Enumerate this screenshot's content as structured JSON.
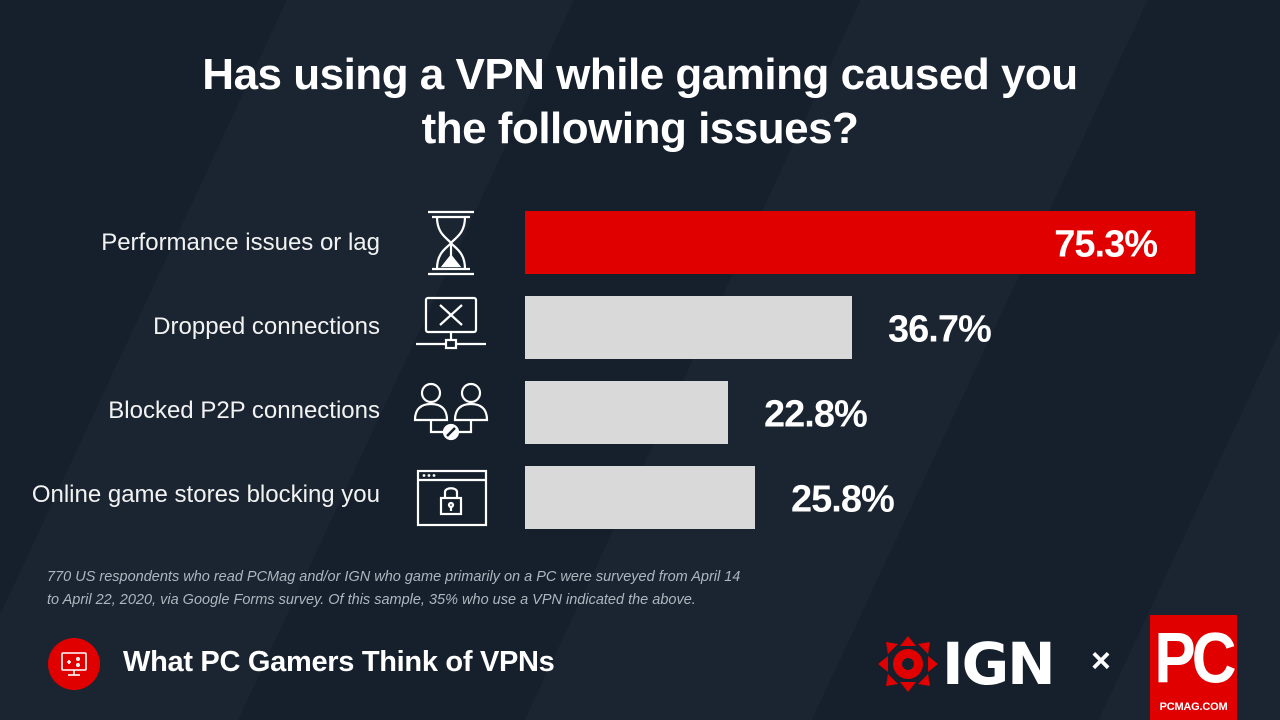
{
  "title": {
    "line1": "Has using a VPN while gaming caused you",
    "line2": "the following issues?"
  },
  "chart_data": {
    "type": "bar",
    "orientation": "horizontal",
    "categories": [
      "Performance issues or lag",
      "Dropped connections",
      "Blocked P2P connections",
      "Online game stores blocking you"
    ],
    "values": [
      75.3,
      36.7,
      22.8,
      25.8
    ],
    "value_labels": [
      "75.3%",
      "36.7%",
      "22.8%",
      "25.8%"
    ],
    "xlim": [
      0,
      75.3
    ],
    "grid": false,
    "legend": "none",
    "bar_colors": [
      "#e00000",
      "#d9d9d9",
      "#d9d9d9",
      "#d9d9d9"
    ],
    "icons": [
      "hourglass-icon",
      "network-error-icon",
      "blocked-users-icon",
      "locked-browser-icon"
    ]
  },
  "note": {
    "line1": "770 US respondents who read PCMag and/or IGN who game primarily on a PC were surveyed from April 14",
    "line2": "to April 22, 2020, via Google Forms survey. Of this sample, 35% who use a VPN indicated the above."
  },
  "footer": {
    "series_title": "What PC Gamers Think of VPNs",
    "series_icon": "vpn-monitor-icon",
    "partner_logo_text": "IGN",
    "separator": "×",
    "brand_logo_text": "PC",
    "brand_url": "PCMAG.COM"
  },
  "colors": {
    "background": "#15202c",
    "accent": "#e00000",
    "bar_default": "#d9d9d9",
    "text": "#ffffff"
  }
}
